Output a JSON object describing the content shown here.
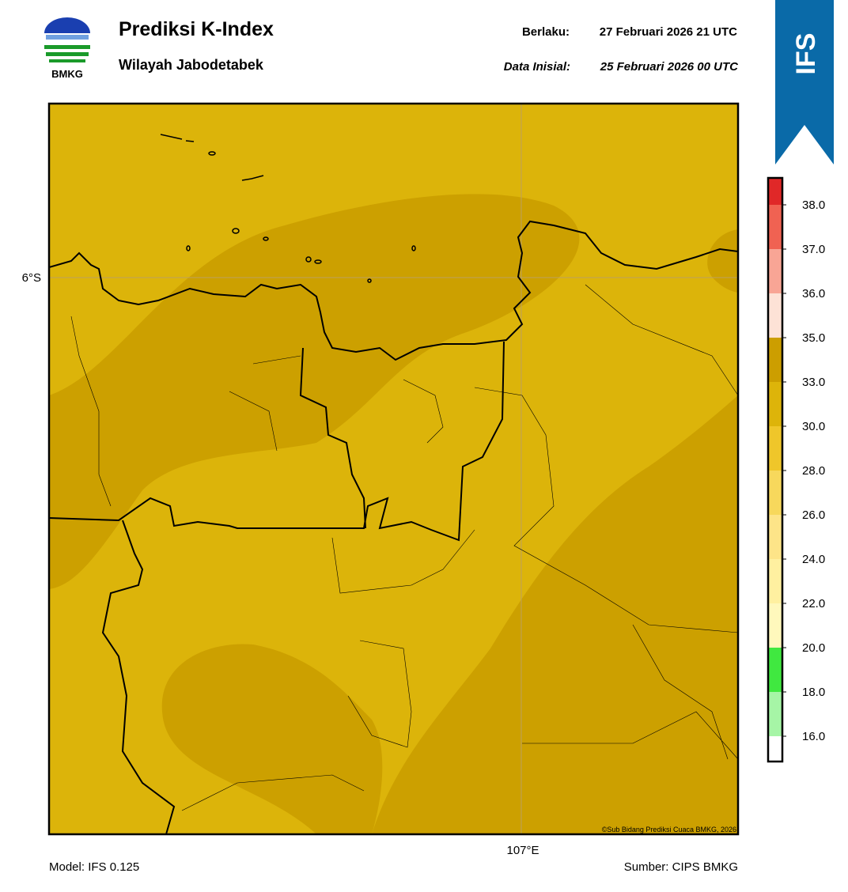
{
  "header": {
    "title": "Prediksi K-Index",
    "subtitle": "Wilayah Jabodetabek",
    "valid_label": "Berlaku:",
    "valid_time": "27 Februari 2026 21 UTC",
    "init_label": "Data Inisial:",
    "init_time": "25 Februari 2026 00 UTC",
    "logo_text": "BMKG",
    "badge": "IFS"
  },
  "map": {
    "lat_label": "6°S",
    "lon_label": "107°E",
    "credit": "©Sub Bidang Prediksi Cuaca BMKG, 2026"
  },
  "colorbar": {
    "ticks": [
      {
        "value": 16,
        "label": "16.0"
      },
      {
        "value": 18,
        "label": "18.0"
      },
      {
        "value": 20,
        "label": "20.0"
      },
      {
        "value": 22,
        "label": "22.0"
      },
      {
        "value": 24,
        "label": "24.0"
      },
      {
        "value": 26,
        "label": "26.0"
      },
      {
        "value": 28,
        "label": "28.0"
      },
      {
        "value": 30,
        "label": "30.0"
      },
      {
        "value": 33,
        "label": "33.0"
      },
      {
        "value": 35,
        "label": "35.0"
      },
      {
        "value": 36,
        "label": "36.0"
      },
      {
        "value": 37,
        "label": "37.0"
      },
      {
        "value": 38,
        "label": "38.0"
      }
    ],
    "colors": [
      "#ffffff",
      "#a6f5a6",
      "#40e840",
      "#fff8bc",
      "#fff0a0",
      "#fde488",
      "#f7d85c",
      "#efc62a",
      "#ddb40a",
      "#cc9e00",
      "#fde2d6",
      "#f8a595",
      "#f06252",
      "#e02828"
    ]
  },
  "footer": {
    "model": "Model: IFS 0.125",
    "source": "Sumber: CIPS BMKG"
  }
}
